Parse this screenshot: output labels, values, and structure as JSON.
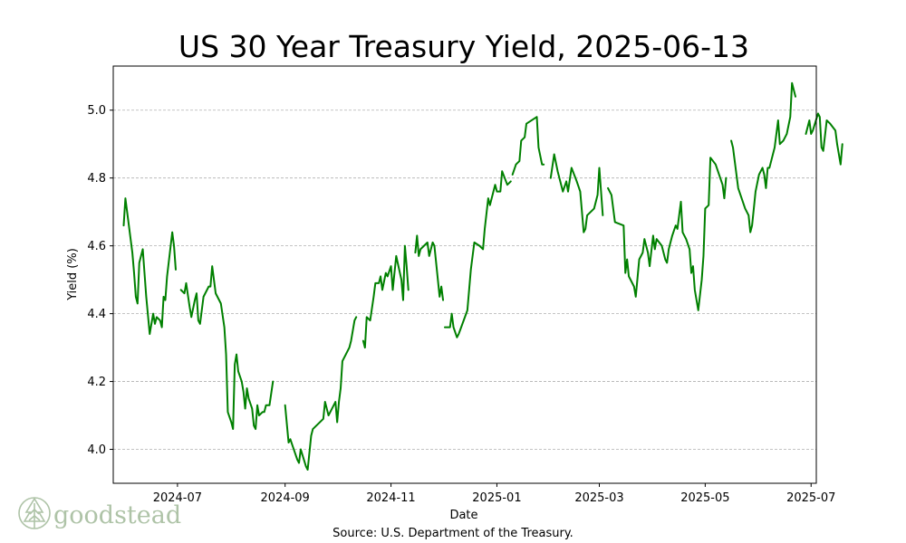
{
  "chart_data": {
    "type": "line",
    "title": "US 30 Year Treasury Yield, 2025-06-13",
    "xlabel": "Date",
    "ylabel": "Yield (%)",
    "source": "Source: U.S. Department of the Treasury.",
    "ylim": [
      3.9,
      5.13
    ],
    "xlim": [
      "2024-05-25",
      "2025-07-04"
    ],
    "grid": "horizontal dashed",
    "line_color": "#008000",
    "x_ticks": [
      "2024-07",
      "2024-09",
      "2024-11",
      "2025-01",
      "2025-03",
      "2025-05",
      "2025-07"
    ],
    "y_ticks": [
      "4.0",
      "4.2",
      "4.4",
      "4.6",
      "4.8",
      "5.0"
    ],
    "series": [
      {
        "points": [
          [
            "2024-05-31",
            4.66
          ],
          [
            "2024-06-01",
            4.74
          ],
          [
            "2024-06-02",
            4.7
          ],
          [
            "2024-06-05",
            4.58
          ],
          [
            "2024-06-06",
            4.52
          ],
          [
            "2024-06-07",
            4.45
          ],
          [
            "2024-06-08",
            4.43
          ],
          [
            "2024-06-09",
            4.55
          ],
          [
            "2024-06-11",
            4.59
          ],
          [
            "2024-06-13",
            4.45
          ],
          [
            "2024-06-15",
            4.34
          ],
          [
            "2024-06-17",
            4.4
          ],
          [
            "2024-06-18",
            4.37
          ],
          [
            "2024-06-19",
            4.39
          ],
          [
            "2024-06-21",
            4.38
          ],
          [
            "2024-06-22",
            4.36
          ],
          [
            "2024-06-23",
            4.45
          ],
          [
            "2024-06-24",
            4.44
          ],
          [
            "2024-06-25",
            4.51
          ],
          [
            "2024-06-28",
            4.64
          ],
          [
            "2024-06-29",
            4.6
          ],
          [
            "2024-06-30",
            4.53
          ],
          null,
          [
            "2024-07-03",
            4.47
          ],
          [
            "2024-07-05",
            4.46
          ],
          [
            "2024-07-06",
            4.49
          ],
          [
            "2024-07-08",
            4.42
          ],
          [
            "2024-07-09",
            4.39
          ],
          [
            "2024-07-11",
            4.44
          ],
          [
            "2024-07-12",
            4.46
          ],
          [
            "2024-07-13",
            4.38
          ],
          [
            "2024-07-14",
            4.37
          ],
          [
            "2024-07-16",
            4.45
          ],
          [
            "2024-07-19",
            4.48
          ],
          [
            "2024-07-20",
            4.48
          ],
          [
            "2024-07-21",
            4.54
          ],
          [
            "2024-07-22",
            4.5
          ],
          [
            "2024-07-23",
            4.46
          ],
          [
            "2024-07-26",
            4.43
          ],
          [
            "2024-07-28",
            4.36
          ],
          [
            "2024-07-29",
            4.28
          ],
          [
            "2024-07-30",
            4.11
          ],
          [
            "2024-08-01",
            4.08
          ],
          [
            "2024-08-02",
            4.06
          ],
          [
            "2024-08-03",
            4.25
          ],
          [
            "2024-08-04",
            4.28
          ],
          [
            "2024-08-05",
            4.23
          ],
          [
            "2024-08-07",
            4.2
          ],
          [
            "2024-08-08",
            4.17
          ],
          [
            "2024-08-09",
            4.12
          ],
          [
            "2024-08-10",
            4.18
          ],
          [
            "2024-08-11",
            4.15
          ],
          [
            "2024-08-13",
            4.12
          ],
          [
            "2024-08-14",
            4.07
          ],
          [
            "2024-08-15",
            4.06
          ],
          [
            "2024-08-16",
            4.13
          ],
          [
            "2024-08-17",
            4.1
          ],
          [
            "2024-08-19",
            4.11
          ],
          [
            "2024-08-20",
            4.11
          ],
          [
            "2024-08-21",
            4.13
          ],
          [
            "2024-08-23",
            4.13
          ],
          [
            "2024-08-25",
            4.2
          ],
          null,
          [
            "2024-09-01",
            4.13
          ],
          [
            "2024-09-03",
            4.02
          ],
          [
            "2024-09-04",
            4.03
          ],
          [
            "2024-09-06",
            4.0
          ],
          [
            "2024-09-08",
            3.97
          ],
          [
            "2024-09-09",
            3.96
          ],
          [
            "2024-09-10",
            4.0
          ],
          [
            "2024-09-13",
            3.95
          ],
          [
            "2024-09-14",
            3.94
          ],
          [
            "2024-09-16",
            4.04
          ],
          [
            "2024-09-17",
            4.06
          ],
          [
            "2024-09-19",
            4.07
          ],
          [
            "2024-09-21",
            4.08
          ],
          [
            "2024-09-23",
            4.09
          ],
          [
            "2024-09-24",
            4.14
          ],
          [
            "2024-09-26",
            4.1
          ],
          [
            "2024-09-28",
            4.12
          ],
          [
            "2024-09-30",
            4.14
          ],
          [
            "2024-10-01",
            4.08
          ],
          [
            "2024-10-02",
            4.14
          ],
          [
            "2024-10-03",
            4.18
          ],
          [
            "2024-10-04",
            4.26
          ],
          [
            "2024-10-06",
            4.28
          ],
          [
            "2024-10-08",
            4.3
          ],
          [
            "2024-10-09",
            4.32
          ],
          [
            "2024-10-11",
            4.38
          ],
          [
            "2024-10-12",
            4.39
          ],
          null,
          [
            "2024-10-16",
            4.32
          ],
          [
            "2024-10-17",
            4.3
          ],
          [
            "2024-10-18",
            4.39
          ],
          [
            "2024-10-20",
            4.38
          ],
          [
            "2024-10-22",
            4.45
          ],
          [
            "2024-10-23",
            4.49
          ],
          [
            "2024-10-25",
            4.49
          ],
          [
            "2024-10-26",
            4.51
          ],
          [
            "2024-10-27",
            4.47
          ],
          [
            "2024-10-29",
            4.52
          ],
          [
            "2024-10-30",
            4.51
          ],
          [
            "2024-11-01",
            4.54
          ],
          [
            "2024-11-02",
            4.47
          ],
          [
            "2024-11-04",
            4.57
          ],
          [
            "2024-11-07",
            4.5
          ],
          [
            "2024-11-08",
            4.44
          ],
          [
            "2024-11-09",
            4.6
          ],
          [
            "2024-11-10",
            4.54
          ],
          [
            "2024-11-11",
            4.47
          ],
          null,
          [
            "2024-11-15",
            4.58
          ],
          [
            "2024-11-16",
            4.63
          ],
          [
            "2024-11-17",
            4.57
          ],
          [
            "2024-11-18",
            4.59
          ],
          [
            "2024-11-20",
            4.6
          ],
          [
            "2024-11-22",
            4.61
          ],
          [
            "2024-11-23",
            4.57
          ],
          [
            "2024-11-25",
            4.61
          ],
          [
            "2024-11-26",
            4.6
          ],
          [
            "2024-11-29",
            4.45
          ],
          [
            "2024-11-30",
            4.48
          ],
          [
            "2024-12-01",
            4.44
          ],
          null,
          [
            "2024-12-02",
            4.36
          ],
          [
            "2024-12-05",
            4.36
          ],
          [
            "2024-12-06",
            4.4
          ],
          [
            "2024-12-07",
            4.36
          ],
          [
            "2024-12-09",
            4.33
          ],
          [
            "2024-12-10",
            4.34
          ],
          [
            "2024-12-15",
            4.41
          ],
          [
            "2024-12-17",
            4.53
          ],
          [
            "2024-12-19",
            4.61
          ],
          [
            "2024-12-22",
            4.6
          ],
          [
            "2024-12-24",
            4.59
          ],
          [
            "2024-12-25",
            4.65
          ],
          [
            "2024-12-27",
            4.74
          ],
          [
            "2024-12-28",
            4.72
          ],
          [
            "2024-12-31",
            4.78
          ],
          [
            "2025-01-01",
            4.76
          ],
          [
            "2025-01-03",
            4.76
          ],
          [
            "2025-01-04",
            4.82
          ],
          [
            "2025-01-07",
            4.78
          ],
          [
            "2025-01-09",
            4.79
          ],
          null,
          [
            "2025-01-10",
            4.81
          ],
          [
            "2025-01-12",
            4.84
          ],
          [
            "2025-01-14",
            4.85
          ],
          [
            "2025-01-15",
            4.91
          ],
          [
            "2025-01-17",
            4.92
          ],
          [
            "2025-01-18",
            4.96
          ],
          [
            "2025-01-21",
            4.97
          ],
          [
            "2025-01-24",
            4.98
          ],
          [
            "2025-01-25",
            4.89
          ],
          [
            "2025-01-27",
            4.84
          ],
          [
            "2025-01-28",
            4.84
          ],
          null,
          [
            "2025-02-01",
            4.8
          ],
          [
            "2025-02-03",
            4.87
          ],
          [
            "2025-02-05",
            4.82
          ],
          [
            "2025-02-08",
            4.76
          ],
          [
            "2025-02-10",
            4.79
          ],
          [
            "2025-02-11",
            4.76
          ],
          [
            "2025-02-13",
            4.83
          ],
          [
            "2025-02-16",
            4.79
          ],
          [
            "2025-02-18",
            4.76
          ],
          [
            "2025-02-20",
            4.64
          ],
          [
            "2025-02-21",
            4.65
          ],
          [
            "2025-02-22",
            4.69
          ],
          [
            "2025-02-26",
            4.71
          ],
          [
            "2025-02-28",
            4.75
          ],
          [
            "2025-03-01",
            4.83
          ],
          [
            "2025-03-03",
            4.69
          ],
          null,
          [
            "2025-03-06",
            4.77
          ],
          [
            "2025-03-08",
            4.75
          ],
          [
            "2025-03-10",
            4.67
          ],
          [
            "2025-03-15",
            4.66
          ],
          [
            "2025-03-16",
            4.52
          ],
          [
            "2025-03-17",
            4.56
          ],
          [
            "2025-03-18",
            4.51
          ],
          [
            "2025-03-21",
            4.48
          ],
          [
            "2025-03-22",
            4.45
          ],
          [
            "2025-03-24",
            4.56
          ],
          [
            "2025-03-26",
            4.58
          ],
          [
            "2025-03-27",
            4.62
          ],
          [
            "2025-03-29",
            4.58
          ],
          [
            "2025-03-30",
            4.54
          ],
          [
            "2025-04-01",
            4.63
          ],
          [
            "2025-04-02",
            4.59
          ],
          [
            "2025-04-03",
            4.62
          ],
          [
            "2025-04-06",
            4.6
          ],
          [
            "2025-04-08",
            4.56
          ],
          [
            "2025-04-09",
            4.55
          ],
          [
            "2025-04-10",
            4.59
          ],
          [
            "2025-04-12",
            4.63
          ],
          [
            "2025-04-14",
            4.66
          ],
          [
            "2025-04-15",
            4.65
          ],
          [
            "2025-04-17",
            4.73
          ],
          [
            "2025-04-18",
            4.64
          ],
          [
            "2025-04-20",
            4.62
          ],
          [
            "2025-04-22",
            4.59
          ],
          [
            "2025-04-23",
            4.52
          ],
          [
            "2025-04-24",
            4.54
          ],
          [
            "2025-04-25",
            4.47
          ],
          [
            "2025-04-27",
            4.41
          ],
          [
            "2025-04-29",
            4.5
          ],
          [
            "2025-04-30",
            4.57
          ],
          [
            "2025-05-01",
            4.71
          ],
          [
            "2025-05-03",
            4.72
          ],
          [
            "2025-05-04",
            4.86
          ],
          [
            "2025-05-07",
            4.84
          ],
          [
            "2025-05-09",
            4.81
          ],
          [
            "2025-05-11",
            4.78
          ],
          [
            "2025-05-12",
            4.74
          ],
          [
            "2025-05-13",
            4.8
          ],
          null,
          [
            "2025-05-16",
            4.91
          ],
          [
            "2025-05-17",
            4.89
          ],
          [
            "2025-05-20",
            4.77
          ],
          [
            "2025-05-22",
            4.74
          ],
          [
            "2025-05-24",
            4.71
          ],
          [
            "2025-05-26",
            4.69
          ],
          [
            "2025-05-27",
            4.64
          ],
          [
            "2025-05-28",
            4.66
          ],
          [
            "2025-05-30",
            4.76
          ],
          [
            "2025-06-01",
            4.81
          ],
          [
            "2025-06-03",
            4.83
          ],
          [
            "2025-06-04",
            4.81
          ],
          [
            "2025-06-05",
            4.77
          ],
          [
            "2025-06-06",
            4.83
          ],
          [
            "2025-06-07",
            4.83
          ],
          [
            "2025-06-10",
            4.89
          ],
          [
            "2025-06-12",
            4.97
          ],
          [
            "2025-06-13",
            4.9
          ],
          [
            "2025-06-15",
            4.91
          ],
          [
            "2025-06-17",
            4.93
          ],
          [
            "2025-06-19",
            4.98
          ],
          [
            "2025-06-20",
            5.08
          ],
          [
            "2025-06-21",
            5.06
          ],
          [
            "2025-06-22",
            5.04
          ],
          null,
          [
            "2025-06-28",
            4.93
          ],
          [
            "2025-06-30",
            4.97
          ],
          [
            "2025-07-01",
            4.93
          ],
          [
            "2025-07-02",
            4.94
          ],
          [
            "2025-07-05",
            4.99
          ],
          [
            "2025-07-06",
            4.98
          ],
          [
            "2025-07-07",
            4.89
          ],
          [
            "2025-07-08",
            4.88
          ],
          [
            "2025-07-10",
            4.97
          ],
          [
            "2025-07-12",
            4.96
          ],
          [
            "2025-07-15",
            4.94
          ],
          [
            "2025-07-16",
            4.9
          ],
          [
            "2025-07-18",
            4.84
          ],
          [
            "2025-07-19",
            4.9
          ]
        ]
      }
    ]
  },
  "logo": {
    "text": "goodstead",
    "color": "#aec3a7"
  }
}
